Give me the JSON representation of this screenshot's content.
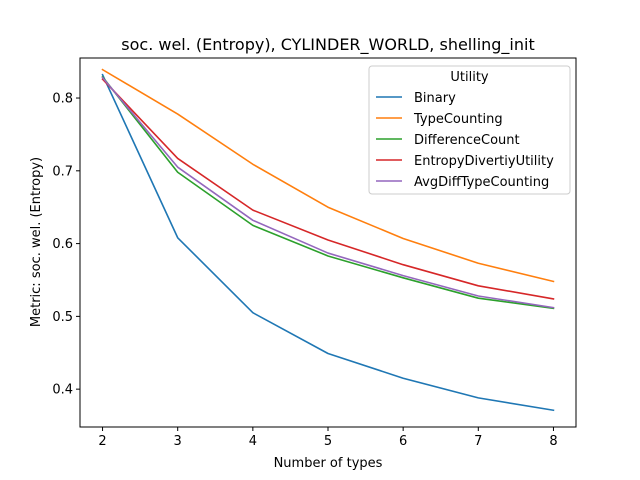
{
  "chart_data": {
    "type": "line",
    "title": "soc. wel. (Entropy), CYLINDER_WORLD, shelling_init",
    "xlabel": "Number of types",
    "ylabel": "Metric: soc. wel. (Entropy)",
    "x": [
      2,
      3,
      4,
      5,
      6,
      7,
      8
    ],
    "xlim": [
      1.7,
      8.3
    ],
    "ylim": [
      0.348,
      0.855
    ],
    "xticks": [
      2,
      3,
      4,
      5,
      6,
      7,
      8
    ],
    "yticks": [
      0.4,
      0.5,
      0.6,
      0.7,
      0.8
    ],
    "grid": false,
    "legend": {
      "title": "Utility",
      "placement": "upper right"
    },
    "series": [
      {
        "name": "Binary",
        "color": "#1f77b4",
        "values": [
          0.832,
          0.608,
          0.505,
          0.449,
          0.415,
          0.388,
          0.371
        ]
      },
      {
        "name": "TypeCounting",
        "color": "#ff7f0e",
        "values": [
          0.839,
          0.778,
          0.709,
          0.65,
          0.607,
          0.573,
          0.548
        ]
      },
      {
        "name": "DifferenceCount",
        "color": "#2ca02c",
        "values": [
          0.829,
          0.698,
          0.625,
          0.583,
          0.553,
          0.525,
          0.511
        ]
      },
      {
        "name": "EntropyDivertiyUtility",
        "color": "#d62728",
        "values": [
          0.826,
          0.717,
          0.646,
          0.605,
          0.571,
          0.542,
          0.524
        ]
      },
      {
        "name": "AvgDiffTypeCounting",
        "color": "#9467bd",
        "values": [
          0.828,
          0.705,
          0.632,
          0.587,
          0.556,
          0.528,
          0.512
        ]
      }
    ]
  }
}
